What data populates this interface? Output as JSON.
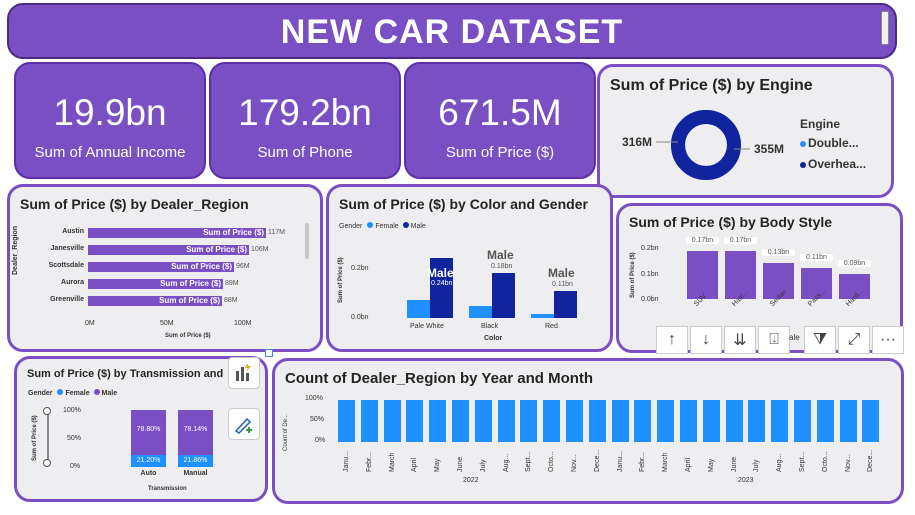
{
  "header": {
    "title": "NEW CAR DATASET"
  },
  "kpis": [
    {
      "value": "19.9bn",
      "label": "Sum of Annual Income"
    },
    {
      "value": "179.2bn",
      "label": "Sum of Phone"
    },
    {
      "value": "671.5M",
      "label": "Sum of Price ($)"
    }
  ],
  "engine_chart": {
    "title": "Sum of Price ($) by Engine",
    "legend_title": "Engine",
    "left_value": "316M",
    "right_value": "355M",
    "items": [
      {
        "label": "Double...",
        "color": "#1e90ff"
      },
      {
        "label": "Overhea...",
        "color": "#12239e"
      }
    ]
  },
  "dealer_chart": {
    "title": "Sum of Price ($) by Dealer_Region",
    "ylabel": "Dealer_Region",
    "xlabel": "Sum of Price ($)",
    "bar_label": "Sum of Price ($)",
    "xticks": [
      "0M",
      "50M",
      "100M"
    ],
    "rows": [
      {
        "label": "Austin",
        "value": "117M"
      },
      {
        "label": "Janesville",
        "value": "106M"
      },
      {
        "label": "Scottsdale",
        "value": "96M"
      },
      {
        "label": "Aurora",
        "value": "89M"
      },
      {
        "label": "Greenville",
        "value": "88M"
      }
    ]
  },
  "color_chart": {
    "title": "Sum of Price ($) by Color and Gender",
    "legend_title": "Gender",
    "legend": [
      "Female",
      "Male"
    ],
    "ylabel": "Sum of Price ($)",
    "xlabel": "Color",
    "yticks": [
      "0.2bn",
      "0.0bn"
    ],
    "categories": [
      "Pale White",
      "Black",
      "Red"
    ],
    "male_tags": [
      "Male",
      "Male",
      "Male"
    ],
    "male_values": [
      "0.24bn",
      "0.18bn",
      "0.11bn"
    ]
  },
  "body_chart": {
    "title": "Sum of Price ($) by Body Style",
    "ylabel": "Sum of Price ($)",
    "yticks": [
      "0.2bn",
      "0.1bn",
      "0.0bn"
    ],
    "bars": [
      {
        "label": "SUV",
        "value": "0.17bn"
      },
      {
        "label": "Hatc...",
        "value": "0.17bn"
      },
      {
        "label": "Sedan",
        "value": "0.13bn"
      },
      {
        "label": "Pass...",
        "value": "0.11bn"
      },
      {
        "label": "Hard...",
        "value": "0.09bn"
      }
    ],
    "partial_label": "ale"
  },
  "toolbar": {
    "sort_asc_glyph": "↑",
    "sort_desc_glyph": "↓",
    "expand_all_glyph": "⇊",
    "drill_glyph": "⍗",
    "filter_glyph": "⧩",
    "focus_glyph": "⤢",
    "more_glyph": "···"
  },
  "transmission_chart": {
    "title": "Sum of Price ($) by Transmission and",
    "legend_title": "Gender",
    "legend": [
      "Female",
      "Male"
    ],
    "ylabel": "Sum of Price ($)",
    "xlabel": "Transmission",
    "yticks": [
      "100%",
      "50%",
      "0%"
    ],
    "bars": [
      {
        "label": "Auto",
        "male": "78.80%",
        "female": "21.20%"
      },
      {
        "label": "Manual",
        "male": "78.14%",
        "female": "21.86%"
      }
    ]
  },
  "count_chart": {
    "title": "Count of Dealer_Region by Year and Month",
    "ylabel": "Count of De...",
    "yticks": [
      "100%",
      "50%",
      "0%"
    ],
    "months": [
      "Janu...",
      "Febr...",
      "March",
      "April",
      "May",
      "June",
      "July",
      "Aug...",
      "Sept...",
      "Octo...",
      "Nov...",
      "Dece...",
      "Janu...",
      "Febr...",
      "March",
      "April",
      "May",
      "June",
      "July",
      "Aug...",
      "Sept...",
      "Octo...",
      "Nov...",
      "Dece..."
    ],
    "years": [
      "2022",
      "2023"
    ]
  }
}
